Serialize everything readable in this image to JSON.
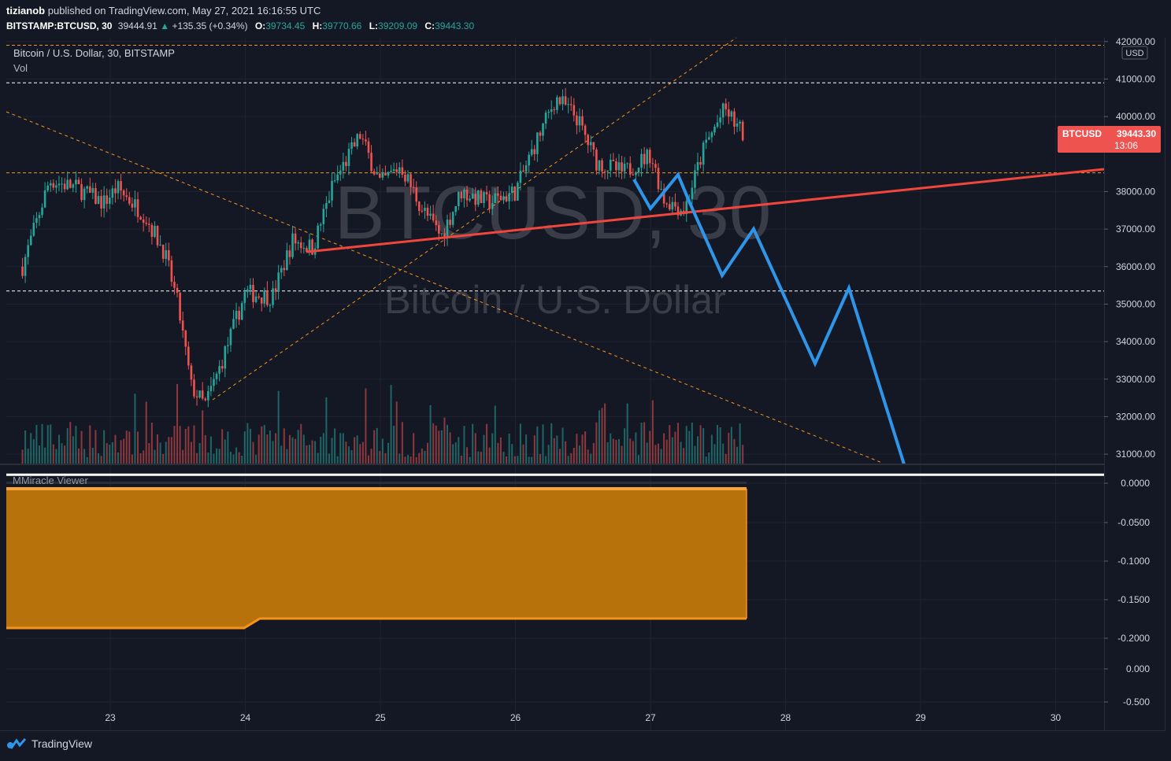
{
  "header": {
    "author": "tizianob",
    "published_text": "published on TradingView.com, May 27, 2021 16:16:55 UTC"
  },
  "quote": {
    "symbol": "BITSTAMP:BTCUSD, 30",
    "last": "39444.91",
    "change": "+135.35 (+0.34%)",
    "open_label": "O:",
    "open": "39734.45",
    "high_label": "H:",
    "high": "39770.66",
    "low_label": "L:",
    "low": "39209.09",
    "close_label": "C:",
    "close": "39443.30"
  },
  "legend": {
    "title": "Bitcoin / U.S. Dollar, 30, BITSTAMP",
    "vol": "Vol",
    "currency_badge": "USD"
  },
  "watermark": {
    "symbol": "BTCUSD, 30",
    "name": "Bitcoin / U.S. Dollar"
  },
  "price_badge": {
    "symbol": "BTCUSD",
    "price": "39443.30",
    "countdown": "13:06"
  },
  "indicator": {
    "name": "MMiracle Viewer"
  },
  "footer": {
    "brand": "TradingView"
  },
  "colors": {
    "up": "#26a69a",
    "down": "#ef5350",
    "trendline": "#f2463d",
    "projection": "#2e95e8",
    "level": "#f7931a",
    "fill": "#b8720b"
  },
  "chart_data": {
    "type": "candlestick",
    "x_ticks": [
      "23",
      "24",
      "25",
      "26",
      "27",
      "28",
      "29",
      "30"
    ],
    "price_ticks": [
      "42000.00",
      "41000.00",
      "40000.00",
      "38000.00",
      "37000.00",
      "36000.00",
      "35000.00",
      "34000.00",
      "33000.00",
      "32000.00",
      "31000.00"
    ],
    "price_ylim": [
      30750,
      42100
    ],
    "close_path": [
      {
        "x": 22.35,
        "y": 36000
      },
      {
        "x": 22.55,
        "y": 38300
      },
      {
        "x": 22.75,
        "y": 38100
      },
      {
        "x": 22.95,
        "y": 37700
      },
      {
        "x": 23.05,
        "y": 38100
      },
      {
        "x": 23.25,
        "y": 37400
      },
      {
        "x": 23.4,
        "y": 36400
      },
      {
        "x": 23.5,
        "y": 35000
      },
      {
        "x": 23.6,
        "y": 32800
      },
      {
        "x": 23.7,
        "y": 32300
      },
      {
        "x": 23.8,
        "y": 33200
      },
      {
        "x": 24.0,
        "y": 35300
      },
      {
        "x": 24.2,
        "y": 35200
      },
      {
        "x": 24.35,
        "y": 36700
      },
      {
        "x": 24.5,
        "y": 36500
      },
      {
        "x": 24.65,
        "y": 38200
      },
      {
        "x": 24.85,
        "y": 39500
      },
      {
        "x": 25.0,
        "y": 38200
      },
      {
        "x": 25.15,
        "y": 38700
      },
      {
        "x": 25.3,
        "y": 37600
      },
      {
        "x": 25.45,
        "y": 36800
      },
      {
        "x": 25.6,
        "y": 38000
      },
      {
        "x": 25.8,
        "y": 37700
      },
      {
        "x": 26.0,
        "y": 38000
      },
      {
        "x": 26.15,
        "y": 39300
      },
      {
        "x": 26.3,
        "y": 40500
      },
      {
        "x": 26.45,
        "y": 40000
      },
      {
        "x": 26.6,
        "y": 38800
      },
      {
        "x": 26.8,
        "y": 38500
      },
      {
        "x": 27.0,
        "y": 39000
      },
      {
        "x": 27.1,
        "y": 37800
      },
      {
        "x": 27.25,
        "y": 37500
      },
      {
        "x": 27.4,
        "y": 39200
      },
      {
        "x": 27.55,
        "y": 40200
      },
      {
        "x": 27.7,
        "y": 39443
      }
    ],
    "horizontal_levels": [
      {
        "price": 41900,
        "style": "dashed",
        "color": "#f7931a"
      },
      {
        "price": 40900,
        "style": "dashed",
        "color": "#ffffff"
      },
      {
        "price": 38500,
        "style": "dashed",
        "color": "#f7931a"
      },
      {
        "price": 35350,
        "style": "dashed",
        "color": "#ffffff"
      },
      {
        "price": 30450,
        "style": "solid",
        "color": "#ffffff"
      }
    ],
    "indicator_ticks": [
      "0.0000",
      "-0.0500",
      "-0.1000",
      "-0.1500",
      "-0.2000",
      "0.000",
      "-0.500"
    ]
  }
}
